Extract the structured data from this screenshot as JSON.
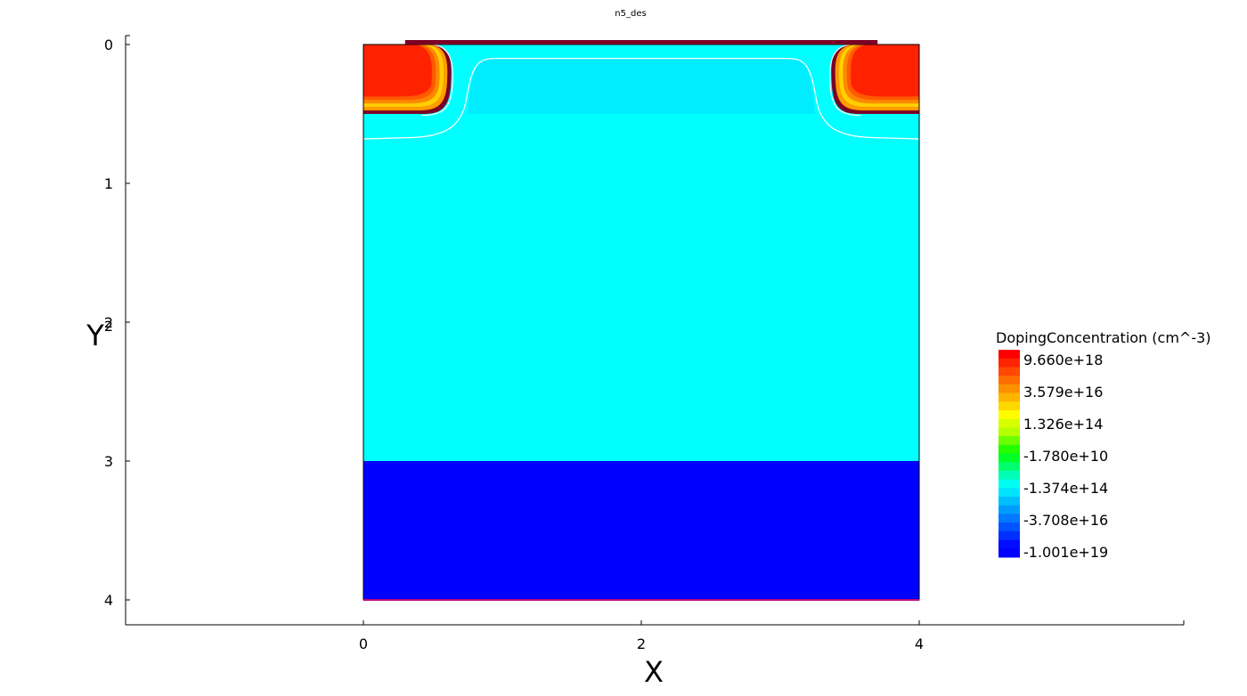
{
  "chart_data": {
    "type": "heatmap",
    "title": "n5_des",
    "xlabel": "X",
    "ylabel": "Y",
    "ylabel_superscript": "2",
    "xlim": [
      -1.7,
      5.9
    ],
    "ylim": [
      0,
      4.2
    ],
    "y_inverted": true,
    "x_ticks": [
      0,
      2,
      4
    ],
    "y_ticks": [
      0,
      1,
      2,
      3,
      4
    ],
    "grid": false,
    "colorbar": {
      "title": "DopingConcentration (cm^-3)",
      "placement": "right",
      "labels": [
        "9.660e+18",
        "3.579e+16",
        "1.326e+14",
        "-1.780e+10",
        "-1.374e+14",
        "-3.708e+16",
        "-1.001e+19"
      ],
      "colors_top_to_bottom": [
        "#ff0000",
        "#ff2400",
        "#ff4800",
        "#ff6c00",
        "#ff9000",
        "#ffb400",
        "#ffd800",
        "#fffc00",
        "#d8ff00",
        "#b4ff00",
        "#6cff00",
        "#24ff00",
        "#00ff24",
        "#00ff6c",
        "#00ffb4",
        "#00fff0",
        "#00e4ff",
        "#00c0ff",
        "#009cff",
        "#0078ff",
        "#0054ff",
        "#0030ff",
        "#000cff",
        "#0000ff"
      ]
    },
    "regions": [
      {
        "name": "substrate",
        "x": [
          0,
          4
        ],
        "y": [
          0,
          3
        ],
        "color": "#00ffff"
      },
      {
        "name": "bottom-layer",
        "x": [
          0,
          4
        ],
        "y": [
          3,
          4
        ],
        "color": "#0000ff"
      },
      {
        "name": "channel-top",
        "x": [
          0.75,
          3.25
        ],
        "y": [
          0.1,
          0.4
        ],
        "color": "#00ecff"
      },
      {
        "name": "left-implant",
        "x": [
          0,
          0.63
        ],
        "y": [
          0,
          0.5
        ],
        "color": "#ff2200"
      },
      {
        "name": "right-implant",
        "x": [
          3.37,
          4
        ],
        "y": [
          0,
          0.5
        ],
        "color": "#ff2200"
      },
      {
        "name": "top-contact",
        "x": [
          0.3,
          3.7
        ],
        "y": [
          -0.03,
          0
        ],
        "color": "#7a0025"
      },
      {
        "name": "bottom-contact",
        "x": [
          0,
          4
        ],
        "y": [
          4,
          4.01
        ],
        "color": "#c0007a"
      }
    ]
  }
}
